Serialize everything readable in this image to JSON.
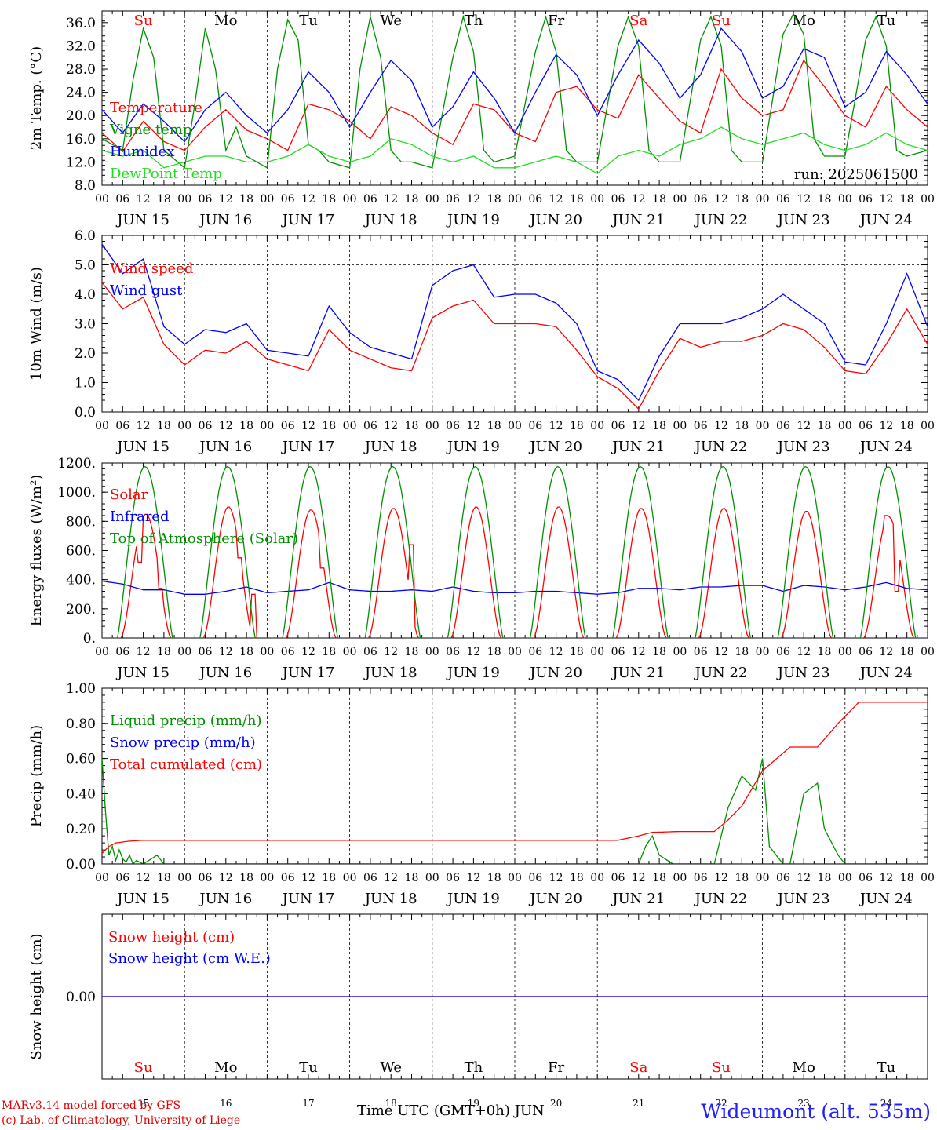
{
  "meta": {
    "run_label": "run: 2025061500",
    "x_title": "Time UTC (GMT+0h)",
    "month": "JUN",
    "station": "Wideumont (alt. 535m)",
    "credit_line1": "MARv3.14 model forced by GFS",
    "credit_line2": "(c) Lab. of Climatology, University of Liege"
  },
  "days": {
    "weekday_labels": [
      "Su",
      "Mo",
      "Tu",
      "We",
      "Th",
      "Fr",
      "Sa",
      "Su",
      "Mo",
      "Tu"
    ],
    "weekend_flags": [
      true,
      false,
      false,
      false,
      false,
      false,
      true,
      true,
      false,
      false
    ],
    "date_labels": [
      "JUN 15",
      "JUN 16",
      "JUN 17",
      "JUN 18",
      "JUN 19",
      "JUN 20",
      "JUN 21",
      "JUN 22",
      "JUN 23",
      "JUN 24"
    ],
    "day_numbers": [
      "15",
      "16",
      "17",
      "18",
      "19",
      "20",
      "21",
      "22",
      "23",
      "24"
    ],
    "hour_labels": [
      "00",
      "06",
      "12",
      "18"
    ],
    "end_label": "00"
  },
  "colors": {
    "red": "#ff0000",
    "green": "#009000",
    "blue": "#0000ff",
    "light_green": "#22dd22",
    "station_blue": "#2020ff"
  },
  "chart_data": [
    {
      "type": "line",
      "ylabel": "2m Temp. (°C)",
      "ylim": [
        8,
        38
      ],
      "yticks": [
        "8.0",
        "12.0",
        "16.0",
        "20.0",
        "24.0",
        "28.0",
        "32.0",
        "36.0"
      ],
      "x_unit": "hours since 2025-06-15 00 UTC",
      "series": [
        {
          "name": "Temperature",
          "color": "red",
          "x": [
            0,
            6,
            12,
            18,
            24,
            30,
            36,
            42,
            48,
            54,
            60,
            66,
            72,
            78,
            84,
            90,
            96,
            102,
            108,
            114,
            120,
            126,
            132,
            138,
            144,
            150,
            156,
            162,
            168,
            174,
            180,
            186,
            192,
            198,
            204,
            210,
            216,
            222,
            228,
            234,
            240
          ],
          "y": [
            17,
            13.8,
            19,
            15.5,
            14,
            18,
            21,
            17.5,
            16,
            14,
            22,
            21,
            19,
            16,
            21.5,
            20,
            17,
            15,
            22,
            21,
            17,
            15.5,
            24,
            25,
            21,
            19.5,
            27,
            23,
            19,
            17,
            28,
            23,
            20,
            21,
            29.5,
            25,
            20,
            18,
            25,
            21,
            18
          ]
        },
        {
          "name": "Vigne temp",
          "color": "green",
          "x": [
            0,
            6,
            9,
            12,
            15,
            18,
            24,
            27,
            30,
            33,
            36,
            39,
            42,
            48,
            51,
            54,
            57,
            60,
            63,
            66,
            72,
            75,
            78,
            81,
            84,
            87,
            90,
            96,
            102,
            105,
            108,
            111,
            114,
            120,
            126,
            129,
            132,
            135,
            138,
            144,
            150,
            153,
            156,
            159,
            162,
            168,
            174,
            177,
            180,
            183,
            186,
            192,
            198,
            201,
            204,
            207,
            210,
            216,
            222,
            225,
            228,
            231,
            234,
            240
          ],
          "y": [
            16,
            14,
            26,
            35,
            30,
            14,
            11,
            22,
            35,
            28,
            14,
            18,
            13,
            11,
            28,
            36.5,
            33,
            15,
            14,
            12,
            11,
            28,
            37,
            30,
            14,
            12,
            12,
            11,
            30,
            37,
            31,
            14,
            12,
            13,
            31,
            37,
            31,
            14,
            12,
            12,
            32,
            37,
            32,
            14,
            12,
            12,
            33,
            37,
            32,
            14,
            12,
            12,
            34,
            37.5,
            34,
            16,
            13,
            13,
            33,
            37,
            32,
            14,
            13,
            14
          ]
        },
        {
          "name": "Humidex",
          "color": "blue",
          "x": [
            0,
            6,
            12,
            18,
            24,
            30,
            36,
            42,
            48,
            54,
            60,
            66,
            72,
            78,
            84,
            90,
            96,
            102,
            108,
            114,
            120,
            126,
            132,
            138,
            144,
            150,
            156,
            162,
            168,
            174,
            180,
            186,
            192,
            198,
            204,
            210,
            216,
            222,
            228,
            234,
            240
          ],
          "y": [
            21,
            17,
            22,
            19,
            15.5,
            21,
            24,
            20,
            17,
            21,
            27.5,
            24,
            18,
            24,
            29.5,
            26,
            18,
            21.5,
            27.5,
            23,
            17,
            24,
            30.5,
            27,
            20,
            27,
            33,
            29,
            23,
            27,
            35,
            31,
            23,
            25,
            31.5,
            30,
            21.5,
            24,
            31,
            27,
            22
          ]
        },
        {
          "name": "DewPoint Temp",
          "color": "light_green",
          "x": [
            0,
            6,
            12,
            18,
            24,
            30,
            36,
            42,
            48,
            54,
            60,
            66,
            72,
            78,
            84,
            90,
            96,
            102,
            108,
            114,
            120,
            126,
            132,
            138,
            144,
            150,
            156,
            162,
            168,
            174,
            180,
            186,
            192,
            198,
            204,
            210,
            216,
            222,
            228,
            234,
            240
          ],
          "y": [
            14,
            13,
            14,
            11,
            12,
            13,
            13,
            12,
            12,
            13,
            15,
            13,
            12,
            13,
            16,
            15,
            13,
            12,
            13,
            11,
            11,
            12,
            13,
            12,
            10,
            13,
            14,
            13,
            15,
            16,
            18,
            16,
            15,
            16,
            17,
            15,
            14,
            15,
            17,
            15,
            14
          ]
        }
      ]
    },
    {
      "type": "line",
      "ylabel": "10m Wind (m/s)",
      "ylim": [
        0,
        6
      ],
      "yticks": [
        "0.0",
        "1.0",
        "2.0",
        "3.0",
        "4.0",
        "5.0",
        "6.0"
      ],
      "reference_line": 5.0,
      "x_unit": "hours since 2025-06-15 00 UTC",
      "series": [
        {
          "name": "Wind speed",
          "color": "red",
          "x": [
            0,
            6,
            12,
            18,
            24,
            30,
            36,
            42,
            48,
            54,
            60,
            66,
            72,
            78,
            84,
            90,
            96,
            102,
            108,
            114,
            120,
            126,
            132,
            138,
            144,
            150,
            156,
            162,
            168,
            174,
            180,
            186,
            192,
            198,
            204,
            210,
            216,
            222,
            228,
            234,
            240
          ],
          "y": [
            4.4,
            3.5,
            3.9,
            2.3,
            1.6,
            2.1,
            2.0,
            2.4,
            1.8,
            1.6,
            1.4,
            2.8,
            2.1,
            1.8,
            1.5,
            1.4,
            3.2,
            3.6,
            3.8,
            3.0,
            3.0,
            3.0,
            2.9,
            2.1,
            1.2,
            0.8,
            0.1,
            1.4,
            2.5,
            2.2,
            2.4,
            2.4,
            2.6,
            3.0,
            2.8,
            2.2,
            1.4,
            1.3,
            2.3,
            3.5,
            2.3
          ]
        },
        {
          "name": "Wind gust",
          "color": "blue",
          "x": [
            0,
            6,
            12,
            18,
            24,
            30,
            36,
            42,
            48,
            54,
            60,
            66,
            72,
            78,
            84,
            90,
            96,
            102,
            108,
            114,
            120,
            126,
            132,
            138,
            144,
            150,
            156,
            162,
            168,
            174,
            180,
            186,
            192,
            198,
            204,
            210,
            216,
            222,
            228,
            234,
            240
          ],
          "y": [
            5.7,
            4.7,
            5.2,
            2.9,
            2.3,
            2.8,
            2.7,
            3.0,
            2.1,
            2.0,
            1.9,
            3.6,
            2.7,
            2.2,
            2.0,
            1.8,
            4.3,
            4.8,
            5.0,
            3.9,
            4.0,
            4.0,
            3.7,
            3.0,
            1.4,
            1.1,
            0.4,
            1.9,
            3.0,
            3.0,
            3.0,
            3.2,
            3.5,
            4.0,
            3.5,
            3.0,
            1.7,
            1.6,
            3.0,
            4.7,
            2.9
          ]
        }
      ]
    },
    {
      "type": "line",
      "ylabel": "Energy fluxes (W/m²)",
      "ylim": [
        0,
        1200
      ],
      "yticks": [
        "0.",
        "200.",
        "400.",
        "600.",
        "800.",
        "1000.",
        "1200."
      ],
      "x_unit": "hours since 2025-06-15 00 UTC",
      "series": [
        {
          "name": "Solar",
          "color": "red",
          "daily_peak": [
            850,
            900,
            880,
            890,
            900,
            900,
            890,
            890,
            870,
            830
          ],
          "secondary_spikes": [
            [
              11,
              520
            ],
            [
              17,
              340
            ],
            [
              40,
              550
            ],
            [
              44,
              300
            ],
            [
              64,
              480
            ],
            [
              90,
              640
            ],
            [
              228,
              840
            ],
            [
              231,
              320
            ]
          ]
        },
        {
          "name": "Infrared",
          "color": "blue",
          "x": [
            0,
            6,
            12,
            18,
            24,
            30,
            36,
            42,
            48,
            54,
            60,
            66,
            72,
            78,
            84,
            90,
            96,
            102,
            108,
            114,
            120,
            126,
            132,
            138,
            144,
            150,
            156,
            162,
            168,
            174,
            180,
            186,
            192,
            198,
            204,
            210,
            216,
            222,
            228,
            234,
            240
          ],
          "y": [
            390,
            370,
            330,
            330,
            300,
            300,
            320,
            350,
            310,
            320,
            330,
            380,
            330,
            320,
            320,
            330,
            320,
            350,
            320,
            310,
            310,
            320,
            320,
            310,
            300,
            310,
            340,
            340,
            330,
            350,
            350,
            360,
            360,
            320,
            360,
            350,
            330,
            350,
            380,
            340,
            330
          ]
        },
        {
          "name": "Top of Atmosphere (Solar)",
          "color": "green",
          "daily_peak": [
            1175,
            1175,
            1175,
            1175,
            1175,
            1175,
            1175,
            1175,
            1175,
            1175
          ]
        }
      ]
    },
    {
      "type": "line",
      "ylabel": "Precip (mm/h)",
      "ylim": [
        0,
        1
      ],
      "yticks": [
        "0.00",
        "0.20",
        "0.40",
        "0.60",
        "0.80",
        "1.00"
      ],
      "x_unit": "hours since 2025-06-15 00 UTC",
      "series": [
        {
          "name": "Liquid precip (mm/h)",
          "color": "green",
          "x": [
            0,
            1,
            2,
            3,
            4,
            5,
            6,
            7,
            8,
            9,
            10,
            12,
            16,
            18,
            24,
            150,
            156,
            158,
            160,
            162,
            166,
            178,
            182,
            186,
            190,
            192,
            194,
            198,
            200,
            204,
            208,
            210,
            214,
            216,
            240
          ],
          "y": [
            0.6,
            0.3,
            0.05,
            0.1,
            0.02,
            0.08,
            0.03,
            0.01,
            0.05,
            0,
            0.02,
            0,
            0.05,
            0,
            0,
            0,
            0,
            0.1,
            0.16,
            0.05,
            0,
            0,
            0.32,
            0.5,
            0.42,
            0.6,
            0.1,
            0,
            0,
            0.4,
            0.46,
            0.2,
            0.05,
            0,
            0
          ]
        },
        {
          "name": "Snow precip (mm/h)",
          "color": "blue",
          "x": [
            0,
            240
          ],
          "y": [
            0,
            0
          ]
        },
        {
          "name": "Total cumulated (cm)",
          "color": "red",
          "x": [
            0,
            2,
            4,
            8,
            12,
            24,
            150,
            156,
            160,
            168,
            178,
            182,
            186,
            192,
            200,
            204,
            208,
            214,
            220,
            240
          ],
          "y": [
            0.06,
            0.1,
            0.12,
            0.13,
            0.135,
            0.135,
            0.135,
            0.16,
            0.18,
            0.185,
            0.185,
            0.25,
            0.33,
            0.53,
            0.665,
            0.665,
            0.665,
            0.8,
            0.92,
            0.92
          ]
        }
      ]
    },
    {
      "type": "line",
      "ylabel": "Snow height (cm)",
      "yticks": [
        "0.00"
      ],
      "x_unit": "hours since 2025-06-15 00 UTC",
      "series": [
        {
          "name": "Snow height (cm)",
          "color": "red",
          "x": [
            0,
            240
          ],
          "y": [
            0,
            0
          ]
        },
        {
          "name": "Snow height (cm W.E.)",
          "color": "blue",
          "x": [
            0,
            240
          ],
          "y": [
            0,
            0
          ]
        }
      ]
    }
  ]
}
